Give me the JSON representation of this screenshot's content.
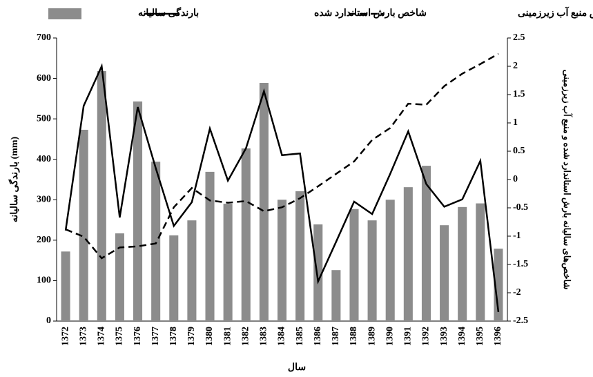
{
  "chart_data": {
    "type": "bar",
    "x_label": "سال",
    "y_label": "بارندگی سالیانه (mm)",
    "y2_label": "شاخص‌های سالیانه بارش استاندارد شده و منبع آب زیرزمینی",
    "categories": [
      "1372",
      "1373",
      "1374",
      "1375",
      "1376",
      "1377",
      "1378",
      "1379",
      "1380",
      "1381",
      "1382",
      "1383",
      "1384",
      "1385",
      "1386",
      "1387",
      "1388",
      "1389",
      "1390",
      "1391",
      "1392",
      "1393",
      "1394",
      "1395",
      "1396"
    ],
    "series": [
      {
        "name": "بارندگی سالیانه",
        "type": "bar",
        "color": "#8c8c8c",
        "values": [
          172,
          473,
          618,
          217,
          543,
          394,
          212,
          249,
          369,
          290,
          427,
          589,
          300,
          321,
          239,
          126,
          277,
          249,
          300,
          331,
          384,
          237,
          282,
          291,
          179
        ]
      },
      {
        "name": "شاخص بارش استاندارد شده",
        "type": "line",
        "style": "solid",
        "color": "#000000",
        "axis": "y2",
        "values": [
          -0.9,
          1.3,
          2.0,
          -0.67,
          1.28,
          0.2,
          -0.82,
          -0.4,
          0.9,
          -0.02,
          0.55,
          1.56,
          0.43,
          0.46,
          -1.8,
          -1.1,
          -0.39,
          -0.61,
          0.1,
          0.85,
          -0.08,
          -0.48,
          -0.35,
          0.33,
          -2.34
        ]
      },
      {
        "name": "شاخص منبع آب زیرزمینی",
        "type": "line",
        "style": "dashed",
        "color": "#000000",
        "axis": "y2",
        "values": [
          -0.88,
          -1.01,
          -1.39,
          -1.2,
          -1.18,
          -1.13,
          -0.49,
          -0.15,
          -0.37,
          -0.41,
          -0.38,
          -0.56,
          -0.49,
          -0.33,
          -0.12,
          0.1,
          0.32,
          0.7,
          0.91,
          1.34,
          1.32,
          1.65,
          1.87,
          2.04,
          2.22
        ]
      }
    ],
    "ylim": [
      0,
      700
    ],
    "yticks": [
      0,
      100,
      200,
      300,
      400,
      500,
      600,
      700
    ],
    "y2lim": [
      -2.5,
      2.5
    ],
    "y2ticks": [
      -2.5,
      -2,
      -1.5,
      -1,
      -0.5,
      0,
      0.5,
      1,
      1.5,
      2,
      2.5
    ]
  }
}
